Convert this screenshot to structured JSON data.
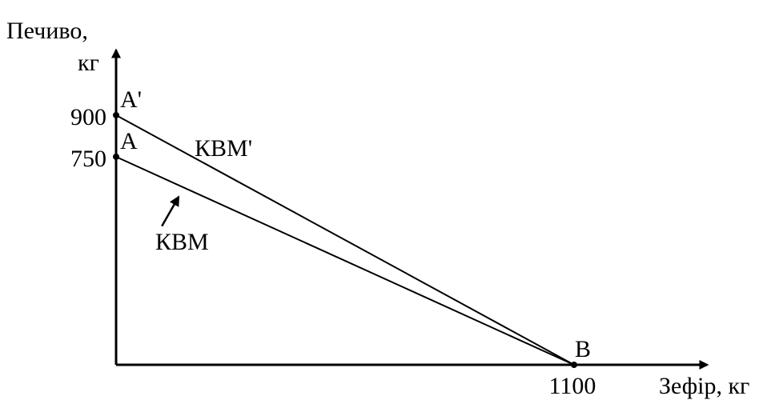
{
  "chart_data": {
    "type": "line",
    "title": "",
    "ylabel_line1": "Печиво,",
    "ylabel_line2": "кг",
    "xlabel": "Зефір, кг",
    "xlim": [
      0,
      1420
    ],
    "ylim": [
      0,
      1135
    ],
    "y_ticks": [
      {
        "value": 750,
        "label": "750"
      },
      {
        "value": 900,
        "label": "900"
      }
    ],
    "x_ticks": [
      {
        "value": 1100,
        "label": "1100"
      }
    ],
    "points": [
      {
        "name": "A'",
        "x": 0,
        "y": 900
      },
      {
        "name": "A",
        "x": 0,
        "y": 750
      },
      {
        "name": "B",
        "x": 1100,
        "y": 0
      }
    ],
    "series": [
      {
        "name": "КВМ'",
        "x": [
          0,
          1100
        ],
        "y": [
          900,
          0
        ]
      },
      {
        "name": "КВМ",
        "x": [
          0,
          1100
        ],
        "y": [
          750,
          0
        ]
      }
    ],
    "shift_arrow": {
      "from": [
        110,
        500
      ],
      "to": [
        150,
        605
      ]
    },
    "grid": false
  },
  "colors": {
    "line": "#000000",
    "background": "#ffffff"
  }
}
